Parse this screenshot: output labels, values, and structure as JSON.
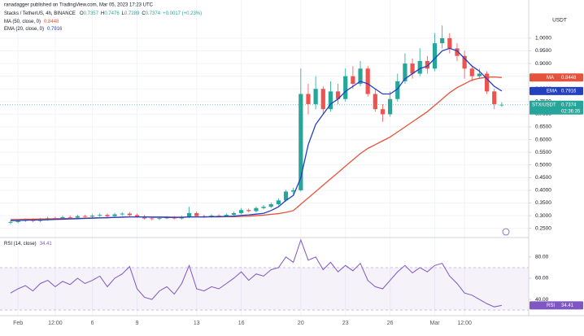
{
  "chart_data": {
    "type": "candlestick",
    "attribution": "ranadagger published on TradingView.com, Mar 05, 2023 17:23 UTC",
    "title": "Stacks / TetherUS, 4h, BINANCE",
    "ohlc_labels": [
      "O",
      "H",
      "L",
      "C"
    ],
    "change_label": "+0.0017 (+0.23%)",
    "y_unit": "USDT",
    "symbol_tag": "STX/USDT",
    "countdown": "02:36:35",
    "up_color": "#26a69a",
    "down_color": "#ef5350",
    "grid": true,
    "categories": [
      null,
      "Feb",
      null,
      null,
      null,
      null,
      "12:00",
      null,
      null,
      null,
      null,
      "6",
      null,
      null,
      null,
      null,
      null,
      "9",
      null,
      null,
      null,
      null,
      null,
      null,
      null,
      "13",
      null,
      null,
      null,
      null,
      null,
      "16",
      null,
      null,
      null,
      null,
      null,
      null,
      null,
      "20",
      null,
      null,
      null,
      null,
      null,
      "23",
      null,
      null,
      null,
      null,
      null,
      "26",
      null,
      null,
      null,
      null,
      null,
      "Mar",
      null,
      null,
      null,
      "12:00",
      null,
      null,
      null,
      null,
      null
    ],
    "open": [
      0.272,
      0.275,
      0.28,
      0.283,
      0.279,
      0.285,
      0.29,
      0.288,
      0.294,
      0.292,
      0.298,
      0.296,
      0.3,
      0.303,
      0.298,
      0.305,
      0.308,
      0.302,
      0.297,
      0.289,
      0.287,
      0.29,
      0.292,
      0.289,
      0.294,
      0.31,
      0.298,
      0.296,
      0.3,
      0.298,
      0.303,
      0.31,
      0.322,
      0.318,
      0.33,
      0.335,
      0.345,
      0.36,
      0.395,
      0.4,
      0.78,
      0.74,
      0.8,
      0.72,
      0.79,
      0.76,
      0.85,
      0.82,
      0.88,
      0.78,
      0.72,
      0.7,
      0.76,
      0.83,
      0.9,
      0.86,
      0.91,
      0.88,
      0.98,
      1.0,
      0.96,
      0.93,
      0.88,
      0.85,
      0.86,
      0.79,
      0.7357
    ],
    "high": [
      0.281,
      0.286,
      0.289,
      0.289,
      0.291,
      0.296,
      0.296,
      0.3,
      0.3,
      0.304,
      0.304,
      0.306,
      0.309,
      0.309,
      0.311,
      0.314,
      0.314,
      0.308,
      0.303,
      0.295,
      0.296,
      0.298,
      0.298,
      0.3,
      0.335,
      0.316,
      0.304,
      0.306,
      0.306,
      0.309,
      0.316,
      0.33,
      0.328,
      0.336,
      0.342,
      0.352,
      0.368,
      0.402,
      0.41,
      0.88,
      0.82,
      0.85,
      0.81,
      0.83,
      0.82,
      0.88,
      0.89,
      0.91,
      0.89,
      0.8,
      0.74,
      0.79,
      0.86,
      0.94,
      0.92,
      0.96,
      0.93,
      1.02,
      1.05,
      1.02,
      0.98,
      0.95,
      0.89,
      0.88,
      0.87,
      0.8,
      0.7476
    ],
    "low": [
      0.266,
      0.27,
      0.275,
      0.274,
      0.274,
      0.28,
      0.283,
      0.284,
      0.287,
      0.288,
      0.291,
      0.291,
      0.295,
      0.293,
      0.294,
      0.3,
      0.297,
      0.292,
      0.284,
      0.282,
      0.283,
      0.286,
      0.285,
      0.285,
      0.29,
      0.294,
      0.291,
      0.292,
      0.294,
      0.294,
      0.299,
      0.305,
      0.313,
      0.313,
      0.325,
      0.33,
      0.34,
      0.355,
      0.385,
      0.395,
      0.7,
      0.72,
      0.7,
      0.71,
      0.74,
      0.75,
      0.8,
      0.81,
      0.77,
      0.71,
      0.67,
      0.69,
      0.75,
      0.82,
      0.84,
      0.85,
      0.86,
      0.87,
      0.96,
      0.94,
      0.91,
      0.84,
      0.83,
      0.84,
      0.78,
      0.72,
      0.7289
    ],
    "close": [
      0.275,
      0.28,
      0.283,
      0.279,
      0.285,
      0.29,
      0.288,
      0.294,
      0.292,
      0.298,
      0.296,
      0.3,
      0.303,
      0.298,
      0.305,
      0.308,
      0.302,
      0.297,
      0.289,
      0.287,
      0.29,
      0.292,
      0.289,
      0.294,
      0.31,
      0.298,
      0.296,
      0.3,
      0.298,
      0.303,
      0.31,
      0.322,
      0.318,
      0.33,
      0.335,
      0.345,
      0.36,
      0.395,
      0.4,
      0.78,
      0.74,
      0.8,
      0.72,
      0.79,
      0.76,
      0.85,
      0.82,
      0.88,
      0.78,
      0.72,
      0.7,
      0.76,
      0.83,
      0.9,
      0.86,
      0.91,
      0.88,
      0.98,
      1.0,
      0.96,
      0.93,
      0.88,
      0.85,
      0.86,
      0.79,
      0.74,
      0.7374
    ],
    "series": [
      {
        "name": "MA (50, close, 0)",
        "tag": "MA",
        "color": "#e5533c",
        "values": [
          0.285,
          0.285,
          0.286,
          0.286,
          0.287,
          0.287,
          0.288,
          0.288,
          0.289,
          0.289,
          0.29,
          0.291,
          0.292,
          0.292,
          0.293,
          0.294,
          0.295,
          0.295,
          0.295,
          0.295,
          0.295,
          0.295,
          0.294,
          0.294,
          0.295,
          0.295,
          0.295,
          0.295,
          0.295,
          0.296,
          0.296,
          0.297,
          0.298,
          0.3,
          0.302,
          0.305,
          0.308,
          0.313,
          0.32,
          0.345,
          0.37,
          0.395,
          0.42,
          0.445,
          0.47,
          0.495,
          0.52,
          0.545,
          0.565,
          0.58,
          0.595,
          0.61,
          0.63,
          0.65,
          0.67,
          0.69,
          0.71,
          0.735,
          0.76,
          0.785,
          0.805,
          0.82,
          0.835,
          0.842,
          0.846,
          0.847,
          0.8448
        ]
      },
      {
        "name": "EMA (20, close, 0)",
        "tag": "EMA",
        "color": "#2340c2",
        "values": [
          0.28,
          0.281,
          0.282,
          0.283,
          0.283,
          0.284,
          0.285,
          0.286,
          0.287,
          0.288,
          0.289,
          0.29,
          0.291,
          0.292,
          0.293,
          0.294,
          0.295,
          0.295,
          0.295,
          0.294,
          0.294,
          0.293,
          0.293,
          0.293,
          0.295,
          0.295,
          0.295,
          0.296,
          0.296,
          0.297,
          0.298,
          0.301,
          0.303,
          0.306,
          0.309,
          0.32,
          0.335,
          0.36,
          0.38,
          0.45,
          0.58,
          0.66,
          0.7,
          0.74,
          0.76,
          0.79,
          0.81,
          0.83,
          0.82,
          0.8,
          0.78,
          0.78,
          0.8,
          0.84,
          0.86,
          0.88,
          0.89,
          0.92,
          0.95,
          0.96,
          0.95,
          0.92,
          0.89,
          0.87,
          0.84,
          0.81,
          0.7916
        ]
      }
    ],
    "ylim": [
      0.22,
      1.08
    ],
    "yticks": [
      {
        "value": 0.25,
        "label": "0.2500"
      },
      {
        "value": 0.3,
        "label": "0.3000"
      },
      {
        "value": 0.35,
        "label": "0.3500"
      },
      {
        "value": 0.4,
        "label": "0.4000"
      },
      {
        "value": 0.45,
        "label": "0.4500"
      },
      {
        "value": 0.5,
        "label": "0.5000"
      },
      {
        "value": 0.55,
        "label": "0.5500"
      },
      {
        "value": 0.6,
        "label": "0.6000"
      },
      {
        "value": 0.65,
        "label": "0.6500"
      },
      {
        "value": 0.7,
        "label": "0.7000"
      },
      {
        "value": 0.75,
        "label": "0.7500"
      },
      {
        "value": 0.8,
        "label": "0.8000"
      },
      {
        "value": 0.85,
        "label": "0.8500"
      },
      {
        "value": 0.9,
        "label": "0.9000"
      },
      {
        "value": 0.95,
        "label": "0.9500"
      },
      {
        "value": 1.0,
        "label": "1.0000"
      }
    ],
    "rsi": {
      "name": "RSI (14, close)",
      "tag": "RSI",
      "color": "#7e57c2",
      "values": [
        46,
        50,
        53,
        48,
        55,
        58,
        52,
        57,
        54,
        60,
        55,
        58,
        62,
        52,
        60,
        64,
        71,
        50,
        42,
        40,
        48,
        52,
        45,
        55,
        72,
        50,
        48,
        52,
        50,
        55,
        60,
        66,
        58,
        64,
        62,
        68,
        70,
        80,
        75,
        96,
        77,
        80,
        68,
        75,
        66,
        72,
        67,
        74,
        58,
        52,
        50,
        58,
        66,
        72,
        65,
        70,
        66,
        72,
        74,
        62,
        55,
        46,
        44,
        40,
        36,
        33,
        34.41
      ],
      "ylim": [
        27,
        96
      ],
      "yticks": [
        {
          "value": 40,
          "label": "40.00"
        },
        {
          "value": 60,
          "label": "60.00"
        },
        {
          "value": 80,
          "label": "80.00"
        }
      ],
      "band": [
        30,
        70
      ]
    }
  }
}
